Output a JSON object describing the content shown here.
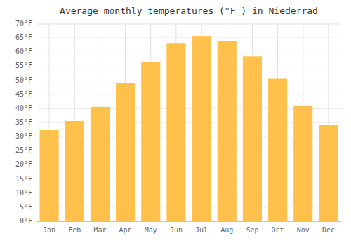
{
  "chart_data": {
    "type": "bar",
    "title": "Average monthly temperatures (°F ) in Niederrad",
    "categories": [
      "Jan",
      "Feb",
      "Mar",
      "Apr",
      "May",
      "Jun",
      "Jul",
      "Aug",
      "Sep",
      "Oct",
      "Nov",
      "Dec"
    ],
    "values": [
      32.5,
      35.5,
      40.5,
      49.0,
      56.5,
      63.0,
      65.5,
      64.0,
      58.5,
      50.5,
      41.0,
      34.0
    ],
    "color": "#FFC04C",
    "ylim": [
      0,
      70
    ],
    "yticks": [
      {
        "value": 0,
        "label": "0°F"
      },
      {
        "value": 5,
        "label": "5°F"
      },
      {
        "value": 10,
        "label": "10°F"
      },
      {
        "value": 15,
        "label": "15°F"
      },
      {
        "value": 20,
        "label": "20°F"
      },
      {
        "value": 25,
        "label": "25°F"
      },
      {
        "value": 30,
        "label": "30°F"
      },
      {
        "value": 35,
        "label": "35°F"
      },
      {
        "value": 40,
        "label": "40°F"
      },
      {
        "value": 45,
        "label": "45°F"
      },
      {
        "value": 50,
        "label": "50°F"
      },
      {
        "value": 55,
        "label": "55°F"
      },
      {
        "value": 60,
        "label": "60°F"
      },
      {
        "value": 65,
        "label": "65°F"
      },
      {
        "value": 70,
        "label": "70°F"
      }
    ],
    "grid": true
  }
}
